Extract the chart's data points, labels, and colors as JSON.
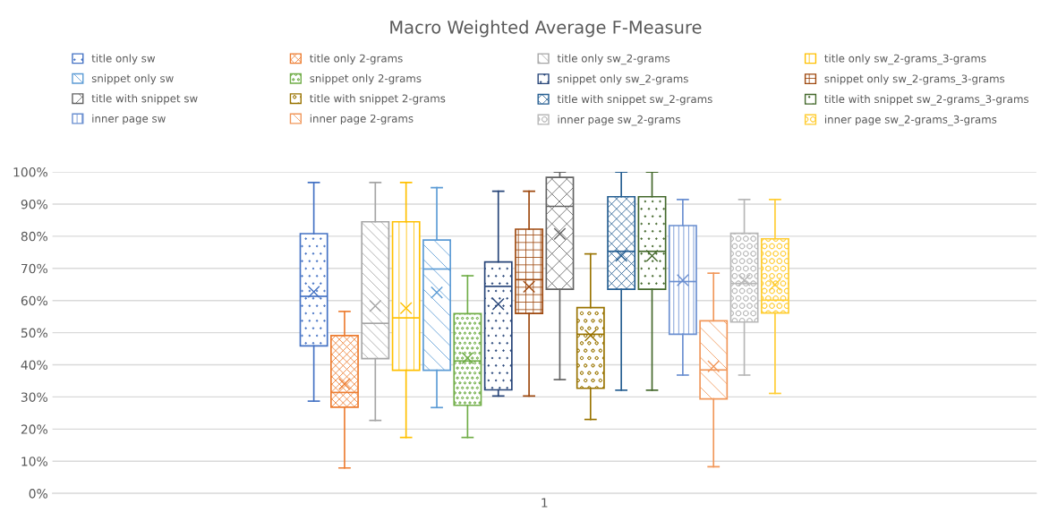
{
  "chart_data": {
    "type": "box",
    "title": "Macro Weighted Average F-Measure",
    "categories": [
      "1"
    ],
    "ylim": [
      0,
      1
    ],
    "yticks": [
      {
        "value": 0,
        "label": "0%"
      },
      {
        "value": 0.1,
        "label": "10%"
      },
      {
        "value": 0.2,
        "label": "20%"
      },
      {
        "value": 0.3,
        "label": "30%"
      },
      {
        "value": 0.4,
        "label": "40%"
      },
      {
        "value": 0.5,
        "label": "50%"
      },
      {
        "value": 0.6,
        "label": "60%"
      },
      {
        "value": 0.7,
        "label": "70%"
      },
      {
        "value": 0.8,
        "label": "80%"
      },
      {
        "value": 0.9,
        "label": "90%"
      },
      {
        "value": 1,
        "label": "100%"
      }
    ],
    "grid": "y",
    "legend": "top",
    "series": [
      {
        "name": "title only sw",
        "color": "#4472c4",
        "boxes": [
          {
            "low": 0.287,
            "q1": 0.459,
            "median": 0.613,
            "q3": 0.808,
            "high": 0.967,
            "mean": 0.627
          }
        ]
      },
      {
        "name": "title only 2-grams",
        "color": "#ed7d31",
        "boxes": [
          {
            "low": 0.079,
            "q1": 0.268,
            "median": 0.314,
            "q3": 0.491,
            "high": 0.566,
            "mean": 0.34
          }
        ]
      },
      {
        "name": "title only sw_2-grams",
        "color": "#a5a5a5",
        "boxes": [
          {
            "low": 0.227,
            "q1": 0.419,
            "median": 0.529,
            "q3": 0.845,
            "high": 0.967,
            "mean": 0.583
          }
        ]
      },
      {
        "name": "title only sw_2-grams_3-grams",
        "color": "#ffc000",
        "boxes": [
          {
            "low": 0.174,
            "q1": 0.383,
            "median": 0.546,
            "q3": 0.845,
            "high": 0.967,
            "mean": 0.576
          }
        ]
      },
      {
        "name": "snippet only sw",
        "color": "#5b9bd5",
        "boxes": [
          {
            "low": 0.267,
            "q1": 0.383,
            "median": 0.698,
            "q3": 0.788,
            "high": 0.951,
            "mean": 0.625
          }
        ]
      },
      {
        "name": "snippet only 2-grams",
        "color": "#70ad47",
        "boxes": [
          {
            "low": 0.174,
            "q1": 0.274,
            "median": 0.412,
            "q3": 0.559,
            "high": 0.677,
            "mean": 0.421
          }
        ]
      },
      {
        "name": "snippet only sw_2-grams",
        "color": "#264478",
        "boxes": [
          {
            "low": 0.303,
            "q1": 0.322,
            "median": 0.644,
            "q3": 0.72,
            "high": 0.94,
            "mean": 0.589
          }
        ]
      },
      {
        "name": "snippet only sw_2-grams_3-grams",
        "color": "#9e480e",
        "boxes": [
          {
            "low": 0.303,
            "q1": 0.56,
            "median": 0.665,
            "q3": 0.822,
            "high": 0.94,
            "mean": 0.643
          }
        ]
      },
      {
        "name": "title with snippet sw",
        "color": "#636363",
        "boxes": [
          {
            "low": 0.354,
            "q1": 0.635,
            "median": 0.893,
            "q3": 0.983,
            "high": 1.0,
            "mean": 0.807
          }
        ]
      },
      {
        "name": "title with snippet 2-grams",
        "color": "#997300",
        "boxes": [
          {
            "low": 0.23,
            "q1": 0.327,
            "median": 0.495,
            "q3": 0.578,
            "high": 0.745,
            "mean": 0.491
          }
        ]
      },
      {
        "name": "title with snippet sw_2-grams",
        "color": "#255e91",
        "boxes": [
          {
            "low": 0.321,
            "q1": 0.635,
            "median": 0.753,
            "q3": 0.923,
            "high": 1.0,
            "mean": 0.739
          }
        ]
      },
      {
        "name": "title with snippet sw_2-grams_3-grams",
        "color": "#43682b",
        "boxes": [
          {
            "low": 0.321,
            "q1": 0.635,
            "median": 0.753,
            "q3": 0.923,
            "high": 1.0,
            "mean": 0.739
          }
        ]
      },
      {
        "name": "inner page sw",
        "color": "#698ed0",
        "boxes": [
          {
            "low": 0.368,
            "q1": 0.495,
            "median": 0.659,
            "q3": 0.833,
            "high": 0.914,
            "mean": 0.663
          }
        ]
      },
      {
        "name": "inner page 2-grams",
        "color": "#f1975a",
        "boxes": [
          {
            "low": 0.083,
            "q1": 0.294,
            "median": 0.384,
            "q3": 0.537,
            "high": 0.685,
            "mean": 0.395
          }
        ]
      },
      {
        "name": "inner page sw_2-grams",
        "color": "#b7b7b7",
        "boxes": [
          {
            "low": 0.368,
            "q1": 0.533,
            "median": 0.653,
            "q3": 0.809,
            "high": 0.914,
            "mean": 0.663
          }
        ]
      },
      {
        "name": "inner page sw_2-grams_3-grams",
        "color": "#ffcd33",
        "boxes": [
          {
            "low": 0.311,
            "q1": 0.561,
            "median": 0.601,
            "q3": 0.792,
            "high": 0.914,
            "mean": 0.649
          }
        ]
      }
    ]
  }
}
